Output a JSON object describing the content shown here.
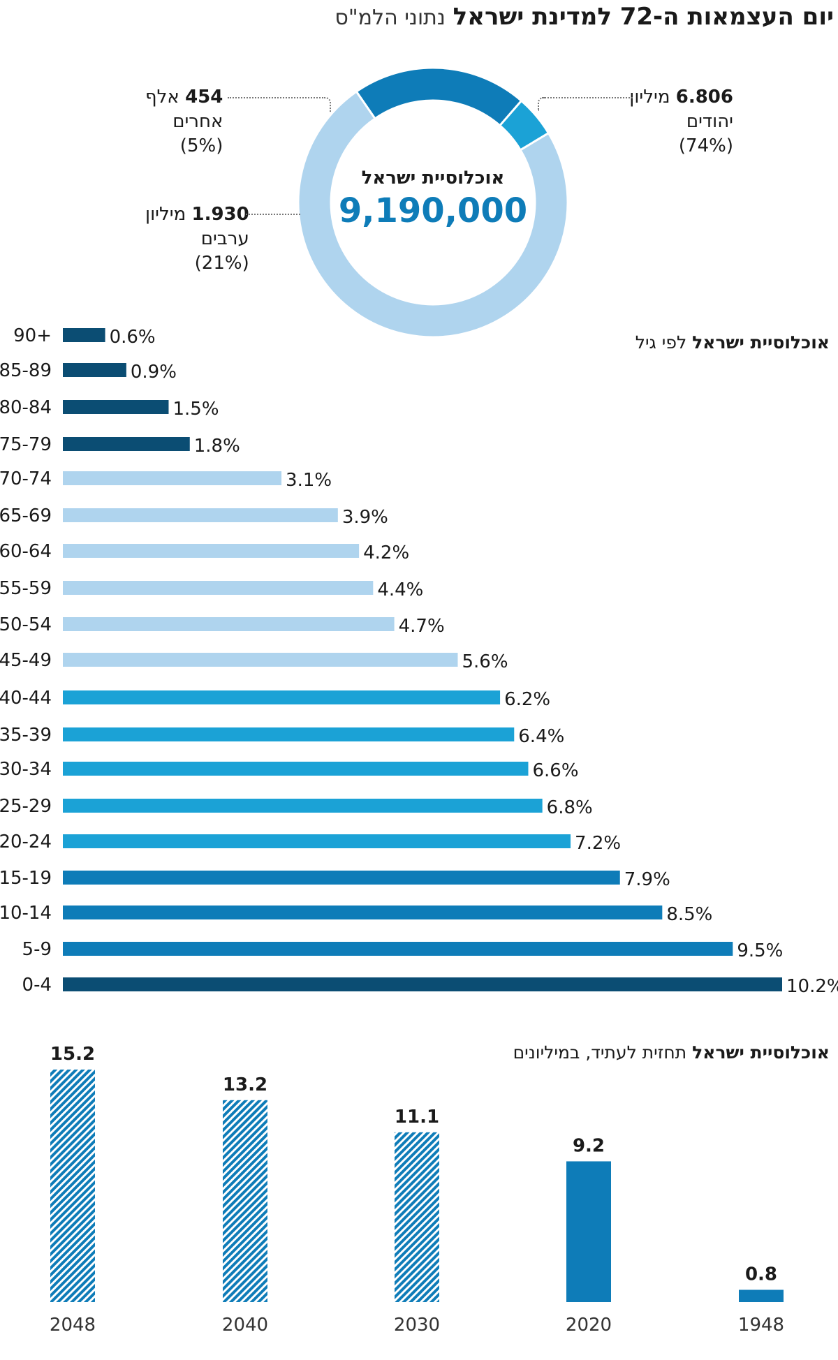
{
  "header": {
    "title_bold": "יום העצמאות ה-72 למדינת ישראל",
    "title_source": "נתוני הלמ\"ס"
  },
  "colors": {
    "dark_blue": "#0b4d73",
    "mid_blue": "#0e7cb8",
    "bright_blue": "#1ba2d6",
    "light_blue": "#afd4ee"
  },
  "donut": {
    "center_label": "אוכלוסיית ישראל",
    "center_value": "9,190,000",
    "jews": {
      "amount": "6.806",
      "unit": "מיליון",
      "name": "יהודים",
      "pct": "(74%)"
    },
    "arabs": {
      "amount": "1.930",
      "unit": "מיליון",
      "name": "ערבים",
      "pct": "(21%)"
    },
    "others": {
      "amount": "454",
      "unit": "אלף",
      "name": "אחרים",
      "pct": "(5%)"
    }
  },
  "age_section": {
    "title_bold": "אוכלוסיית ישראל",
    "title_rest": "לפי גיל"
  },
  "forecast_section": {
    "title_bold": "אוכלוסיית ישראל",
    "title_rest": "תחזית לעתיד, במיליונים"
  },
  "chart_data": [
    {
      "type": "pie",
      "title": "אוכלוסיית ישראל",
      "total": 9190000,
      "categories": [
        "יהודים",
        "ערבים",
        "אחרים"
      ],
      "values": [
        74,
        21,
        5
      ],
      "colors": [
        "#afd4ee",
        "#0e7cb8",
        "#1ba2d6"
      ]
    },
    {
      "type": "bar",
      "orientation": "horizontal",
      "title": "אוכלוסיית ישראל לפי גיל",
      "unit": "%",
      "categories": [
        "90+",
        "85-89",
        "80-84",
        "75-79",
        "70-74",
        "65-69",
        "60-64",
        "55-59",
        "50-54",
        "45-49",
        "40-44",
        "35-39",
        "30-34",
        "25-29",
        "20-24",
        "15-19",
        "10-14",
        "5-9",
        "0-4"
      ],
      "values": [
        0.6,
        0.9,
        1.5,
        1.8,
        3.1,
        3.9,
        4.2,
        4.4,
        4.7,
        5.6,
        6.2,
        6.4,
        6.6,
        6.8,
        7.2,
        7.9,
        8.5,
        9.5,
        10.2
      ],
      "value_labels": [
        "0.6%",
        "0.9%",
        "1.5%",
        "1.8%",
        "3.1%",
        "3.9%",
        "4.2%",
        "4.4%",
        "4.7%",
        "5.6%",
        "6.2%",
        "6.4%",
        "6.6%",
        "6.8%",
        "7.2%",
        "7.9%",
        "8.5%",
        "9.5%",
        "10.2%"
      ],
      "colors": [
        "#0b4d73",
        "#0b4d73",
        "#0b4d73",
        "#0b4d73",
        "#afd4ee",
        "#afd4ee",
        "#afd4ee",
        "#afd4ee",
        "#afd4ee",
        "#afd4ee",
        "#1ba2d6",
        "#1ba2d6",
        "#1ba2d6",
        "#1ba2d6",
        "#1ba2d6",
        "#0e7cb8",
        "#0e7cb8",
        "#0e7cb8",
        "#0b4d73"
      ],
      "grid": false
    },
    {
      "type": "bar",
      "orientation": "vertical",
      "title": "אוכלוסיית ישראל תחזית לעתיד, במיליונים",
      "categories": [
        "2048",
        "2040",
        "2030",
        "2020",
        "1948"
      ],
      "values": [
        15.2,
        13.2,
        11.1,
        9.2,
        0.8
      ],
      "value_labels": [
        "15.2",
        "13.2",
        "11.1",
        "9.2",
        "0.8"
      ],
      "forecast": [
        true,
        true,
        true,
        false,
        false
      ],
      "color": "#0e7cb8",
      "ylim": [
        0,
        15.2
      ],
      "grid": false
    }
  ]
}
